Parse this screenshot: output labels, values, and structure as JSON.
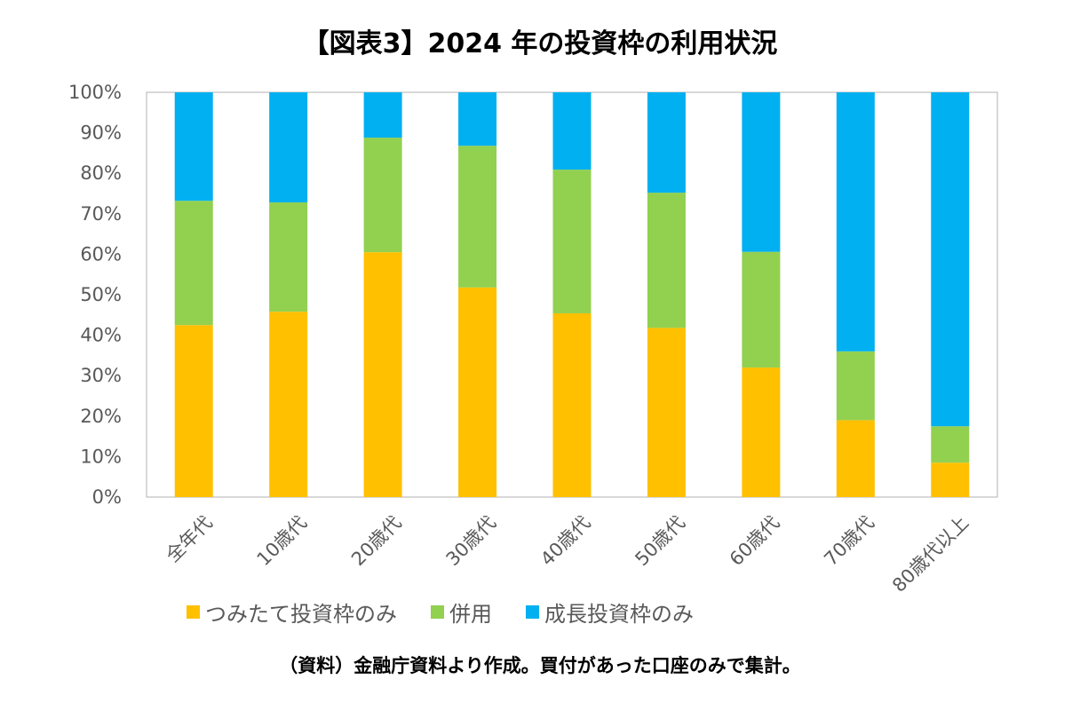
{
  "chart_data": {
    "type": "bar",
    "stacked": true,
    "title": "【図表3】2024 年の投資枠の利用状況",
    "categories": [
      "全年代",
      "10歳代",
      "20歳代",
      "30歳代",
      "40歳代",
      "50歳代",
      "60歳代",
      "70歳代",
      "80歳代以上"
    ],
    "series": [
      {
        "name": "つみたて投資枠のみ",
        "color": "#FFC000",
        "values": [
          42.5,
          45.8,
          60.5,
          51.8,
          45.4,
          41.8,
          32.0,
          19.0,
          8.5
        ]
      },
      {
        "name": "併用",
        "color": "#92D050",
        "values": [
          30.7,
          27.0,
          28.3,
          35.0,
          35.5,
          33.4,
          28.6,
          17.0,
          9.0
        ]
      },
      {
        "name": "成長投資枠のみ",
        "color": "#00B0F0",
        "values": [
          26.8,
          27.2,
          11.2,
          13.2,
          19.1,
          24.8,
          39.4,
          64.0,
          82.5
        ]
      }
    ],
    "ylim": [
      0,
      100
    ],
    "yticks": [
      "0%",
      "10%",
      "20%",
      "30%",
      "40%",
      "50%",
      "60%",
      "70%",
      "80%",
      "90%",
      "100%"
    ],
    "xlabel": "",
    "ylabel": "",
    "legend_position": "bottom",
    "grid": false
  },
  "source_note": "（資料）金融庁資料より作成。買付があった口座のみで集計。"
}
